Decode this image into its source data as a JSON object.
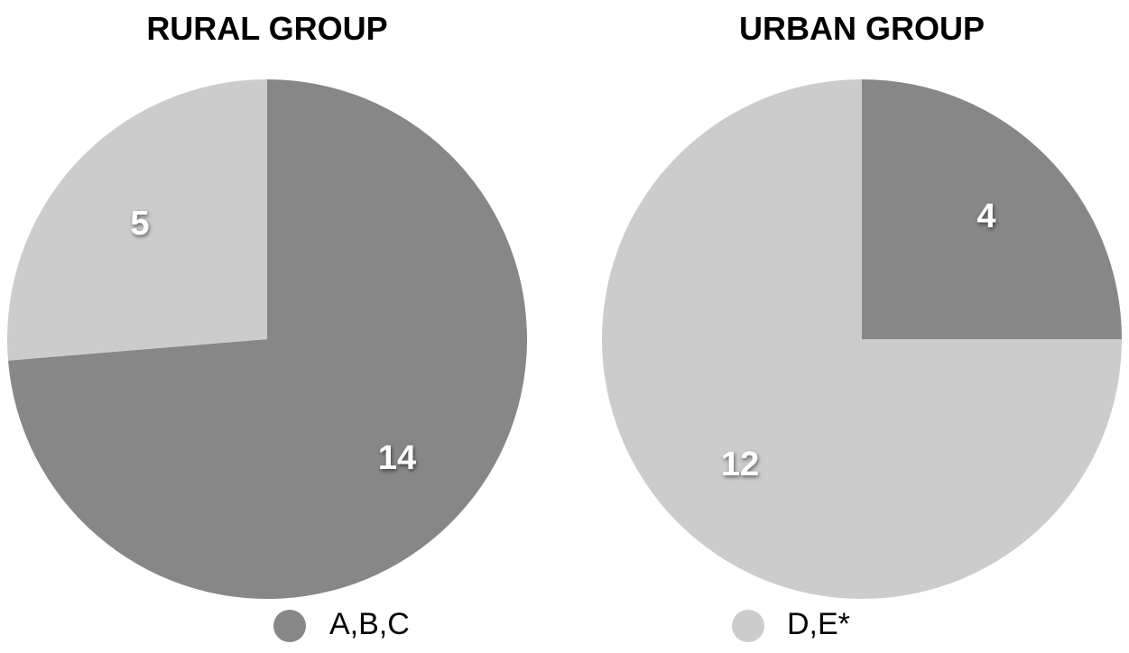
{
  "chart_data": [
    {
      "type": "pie",
      "title": "RURAL GROUP",
      "categories": [
        "A,B,C",
        "D,E*"
      ],
      "values": [
        14,
        5
      ],
      "colors": [
        "#878787",
        "#cccccc"
      ]
    },
    {
      "type": "pie",
      "title": "URBAN GROUP",
      "categories": [
        "A,B,C",
        "D,E*"
      ],
      "values": [
        4,
        12
      ],
      "colors": [
        "#878787",
        "#cccccc"
      ]
    }
  ],
  "legend": {
    "placement": "bottom",
    "items": [
      {
        "label": "A,B,C",
        "color": "#878787"
      },
      {
        "label": "D,E*",
        "color": "#cccccc"
      }
    ]
  }
}
